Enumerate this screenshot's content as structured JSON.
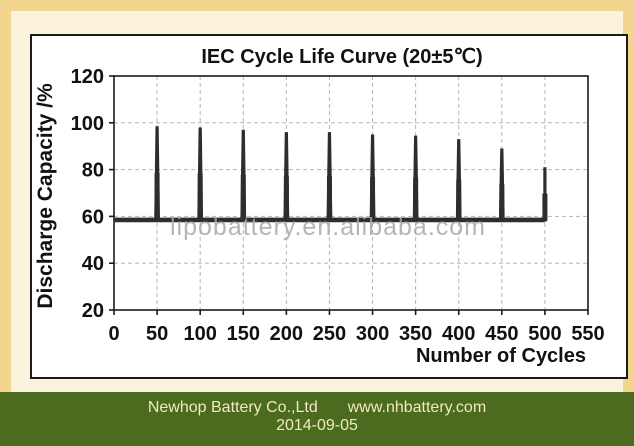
{
  "chart": {
    "title": "IEC Cycle Life Curve (20±5℃)",
    "y_axis_label": "Discharge Capacity /%",
    "x_axis_label": "Number of Cycles",
    "watermark": "lipobattery.en.alibaba.com"
  },
  "chart_data": {
    "type": "line",
    "title": "IEC Cycle Life Curve (20±5℃)",
    "xlabel": "Number of Cycles",
    "ylabel": "Discharge Capacity /%",
    "xlim": [
      0,
      550
    ],
    "ylim": [
      20,
      120
    ],
    "x_ticks": [
      0,
      50,
      100,
      150,
      200,
      250,
      300,
      350,
      400,
      450,
      500,
      550
    ],
    "y_ticks": [
      20,
      40,
      60,
      80,
      100,
      120
    ],
    "grid": true,
    "legend": false,
    "baseline_capacity_pct": 58.5,
    "series": [
      {
        "name": "Discharge Capacity",
        "cycles": [
          50,
          100,
          150,
          200,
          250,
          300,
          350,
          400,
          450,
          500
        ],
        "peak_capacity_pct": [
          98.5,
          98,
          97,
          96,
          96,
          95,
          94.5,
          93,
          89,
          81
        ]
      }
    ]
  },
  "footer": {
    "company": "Newhop Battery Co.,Ltd",
    "website": "www.nhbattery.com",
    "date": "2014-09-05"
  },
  "colors": {
    "frame_border": "#f3d68e",
    "page_background": "#fbf3dc",
    "chart_background": "#ffffff",
    "series_line": "#2d2d2d",
    "gridline": "#b5b5b5",
    "footer_background": "#4c6b1e",
    "footer_text": "#f0e9c2",
    "watermark_text": "#a9a9a9"
  }
}
